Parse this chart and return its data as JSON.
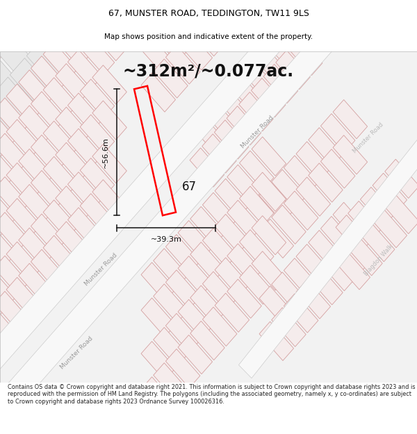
{
  "title_line1": "67, MUNSTER ROAD, TEDDINGTON, TW11 9LS",
  "title_line2": "Map shows position and indicative extent of the property.",
  "area_text": "~312m²/~0.077ac.",
  "parcel_color": "#ff0000",
  "dim_v_label": "~56.6m",
  "dim_h_label": "~39.3m",
  "label_67": "67",
  "footer_text": "Contains OS data © Crown copyright and database right 2021. This information is subject to Crown copyright and database rights 2023 and is reproduced with the permission of HM Land Registry. The polygons (including the associated geometry, namely x, y co-ordinates) are subject to Crown copyright and database rights 2023 Ordnance Survey 100026316.",
  "pink_stroke": "#d4a0a0",
  "pink_fill": "#f5ecec",
  "gray_fill": "#e8e8e8",
  "gray_stroke": "#c0c0c0",
  "road_fill": "#f0f0f0",
  "map_bg": "#f2f2f2"
}
